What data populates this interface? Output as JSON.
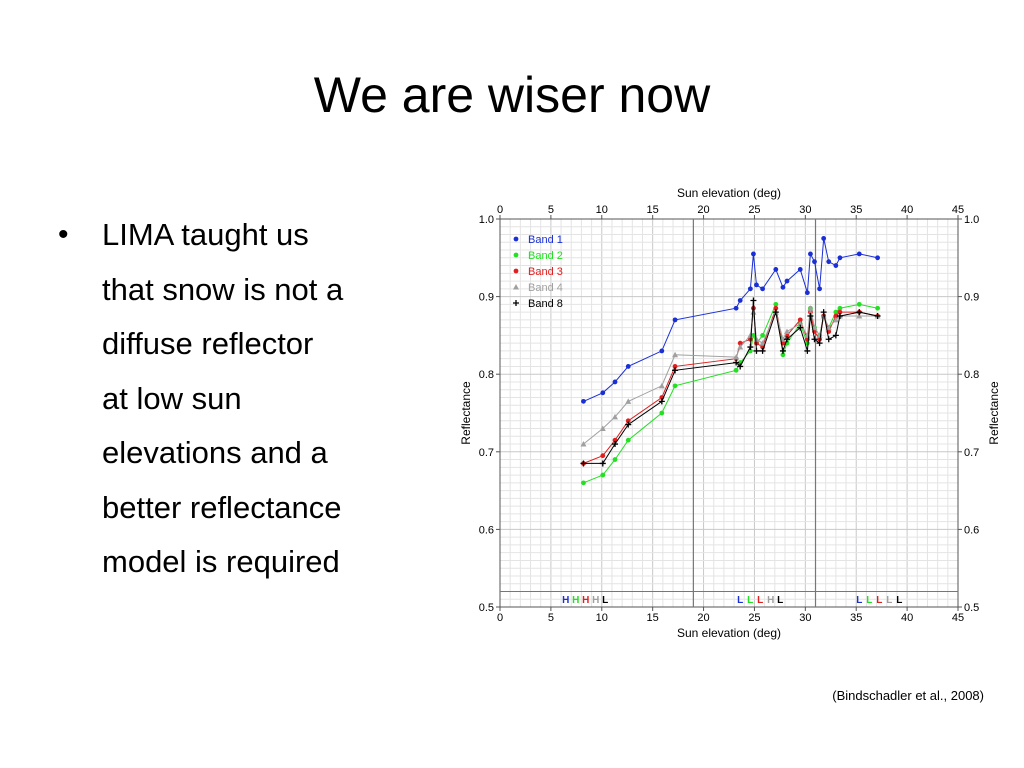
{
  "slide": {
    "title": "We are wiser now",
    "bullet": "LIMA taught us\nthat snow is not a\ndiffuse reflector\nat low sun\nelevations and a\nbetter reflectance\nmodel is required",
    "citation": "(Bindschadler et al., 2008)"
  },
  "chart_data": {
    "type": "line",
    "title": "",
    "xlabel": "Sun elevation (deg)",
    "ylabel": "Reflectance",
    "xlim": [
      0,
      45
    ],
    "ylim": [
      0.5,
      1.0
    ],
    "xticks": [
      0,
      5,
      10,
      15,
      20,
      25,
      30,
      35,
      40,
      45
    ],
    "yticks": [
      "0.5",
      "0.6",
      "0.7",
      "0.8",
      "0.9",
      "1.0"
    ],
    "grid": true,
    "legend_position": "top-left",
    "vertical_lines_x": [
      19,
      31
    ],
    "gain_labels": [
      {
        "x_start": 6.1,
        "letters": [
          "H",
          "H",
          "H",
          "H",
          "L"
        ]
      },
      {
        "x_start": 23.3,
        "letters": [
          "L",
          "L",
          "L",
          "H",
          "L"
        ]
      },
      {
        "x_start": 35.0,
        "letters": [
          "L",
          "L",
          "L",
          "L",
          "L"
        ]
      }
    ],
    "series": [
      {
        "name": "Band 1",
        "color": "#1a2fd6",
        "marker": "circle",
        "x": [
          8.2,
          10.1,
          11.3,
          12.6,
          15.9,
          17.2,
          23.2,
          23.6,
          24.6,
          24.9,
          25.2,
          25.8,
          27.1,
          27.8,
          28.2,
          29.5,
          30.2,
          30.5,
          30.9,
          31.4,
          31.8,
          32.3,
          33.0,
          33.4,
          35.3,
          37.1
        ],
        "y": [
          0.765,
          0.776,
          0.79,
          0.81,
          0.83,
          0.87,
          0.885,
          0.895,
          0.91,
          0.955,
          0.915,
          0.91,
          0.935,
          0.912,
          0.92,
          0.935,
          0.905,
          0.955,
          0.945,
          0.91,
          0.975,
          0.945,
          0.94,
          0.95,
          0.955,
          0.95
        ]
      },
      {
        "name": "Band 2",
        "color": "#22e022",
        "marker": "circle",
        "x": [
          8.2,
          10.1,
          11.3,
          12.6,
          15.9,
          17.2,
          23.2,
          23.6,
          24.6,
          24.9,
          25.2,
          25.8,
          27.1,
          27.8,
          28.2,
          29.5,
          30.2,
          30.5,
          30.9,
          31.4,
          31.8,
          32.3,
          33.0,
          33.4,
          35.3,
          37.1
        ],
        "y": [
          0.66,
          0.67,
          0.69,
          0.715,
          0.75,
          0.785,
          0.805,
          0.815,
          0.83,
          0.85,
          0.84,
          0.85,
          0.89,
          0.825,
          0.84,
          0.865,
          0.84,
          0.885,
          0.86,
          0.85,
          0.875,
          0.86,
          0.88,
          0.885,
          0.89,
          0.885
        ]
      },
      {
        "name": "Band 3",
        "color": "#e02020",
        "marker": "circle",
        "x": [
          8.2,
          10.1,
          11.3,
          12.6,
          15.9,
          17.2,
          23.2,
          23.6,
          24.6,
          24.9,
          25.2,
          25.8,
          27.1,
          27.8,
          28.2,
          29.5,
          30.2,
          30.5,
          30.9,
          31.4,
          31.8,
          32.3,
          33.0,
          33.4,
          35.3,
          37.1
        ],
        "y": [
          0.685,
          0.695,
          0.715,
          0.74,
          0.77,
          0.81,
          0.82,
          0.84,
          0.845,
          0.885,
          0.84,
          0.835,
          0.885,
          0.84,
          0.85,
          0.87,
          0.845,
          0.88,
          0.855,
          0.845,
          0.875,
          0.855,
          0.875,
          0.88,
          0.88,
          0.875
        ]
      },
      {
        "name": "Band 4",
        "color": "#a0a0a0",
        "marker": "triangle",
        "x": [
          8.2,
          10.1,
          11.3,
          12.6,
          15.9,
          17.2,
          23.2,
          23.6,
          24.6,
          24.9,
          25.2,
          25.8,
          27.1,
          27.8,
          28.2,
          29.5,
          30.2,
          30.5,
          30.9,
          31.4,
          31.8,
          32.3,
          33.0,
          33.4,
          35.3,
          37.1
        ],
        "y": [
          0.71,
          0.73,
          0.745,
          0.765,
          0.785,
          0.825,
          0.822,
          0.835,
          0.85,
          0.88,
          0.845,
          0.84,
          0.88,
          0.845,
          0.855,
          0.865,
          0.85,
          0.885,
          0.86,
          0.85,
          0.875,
          0.86,
          0.87,
          0.875,
          0.875,
          0.875
        ]
      },
      {
        "name": "Band 8",
        "color": "#000000",
        "marker": "plus",
        "x": [
          8.2,
          10.1,
          11.3,
          12.6,
          15.9,
          17.2,
          23.2,
          23.6,
          24.6,
          24.9,
          25.2,
          25.8,
          27.1,
          27.8,
          28.2,
          29.5,
          30.2,
          30.5,
          30.9,
          31.4,
          31.8,
          32.3,
          33.0,
          33.4,
          35.3,
          37.1
        ],
        "y": [
          0.685,
          0.685,
          0.71,
          0.735,
          0.765,
          0.805,
          0.815,
          0.81,
          0.835,
          0.895,
          0.83,
          0.83,
          0.88,
          0.83,
          0.845,
          0.86,
          0.83,
          0.875,
          0.845,
          0.84,
          0.88,
          0.845,
          0.85,
          0.875,
          0.88,
          0.875
        ]
      }
    ]
  }
}
